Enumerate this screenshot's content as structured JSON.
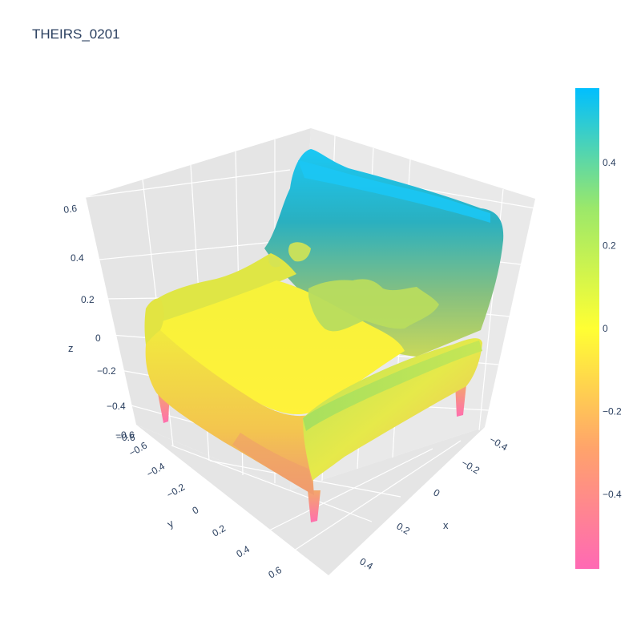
{
  "title": "THEIRS_0201",
  "chart_data": {
    "type": "mesh3d",
    "title": "THEIRS_0201",
    "colorscale": [
      "#ff69b4",
      "#ffff33",
      "#00bfff"
    ],
    "color_range": [
      -0.58,
      0.58
    ],
    "colorbar": {
      "tick_values": [
        -0.4,
        -0.2,
        0,
        0.2,
        0.4
      ],
      "tick_labels": [
        "−0.4",
        "−0.2",
        "0",
        "0.2",
        "0.4"
      ]
    },
    "axes": {
      "x": {
        "label": "x",
        "tick_labels": [
          "−0.4",
          "−0.2",
          "0",
          "0.2",
          "0.4"
        ]
      },
      "y": {
        "label": "y",
        "tick_labels": [
          "−0.6",
          "−0.4",
          "−0.2",
          "0",
          "0.2",
          "0.4",
          "0.6"
        ]
      },
      "z": {
        "label": "z",
        "tick_labels": [
          "−0.6",
          "−0.4",
          "−0.2",
          "0",
          "0.2",
          "0.4",
          "0.6"
        ]
      }
    },
    "background": "#e5e5e5",
    "grid": true,
    "object": "armchair"
  }
}
